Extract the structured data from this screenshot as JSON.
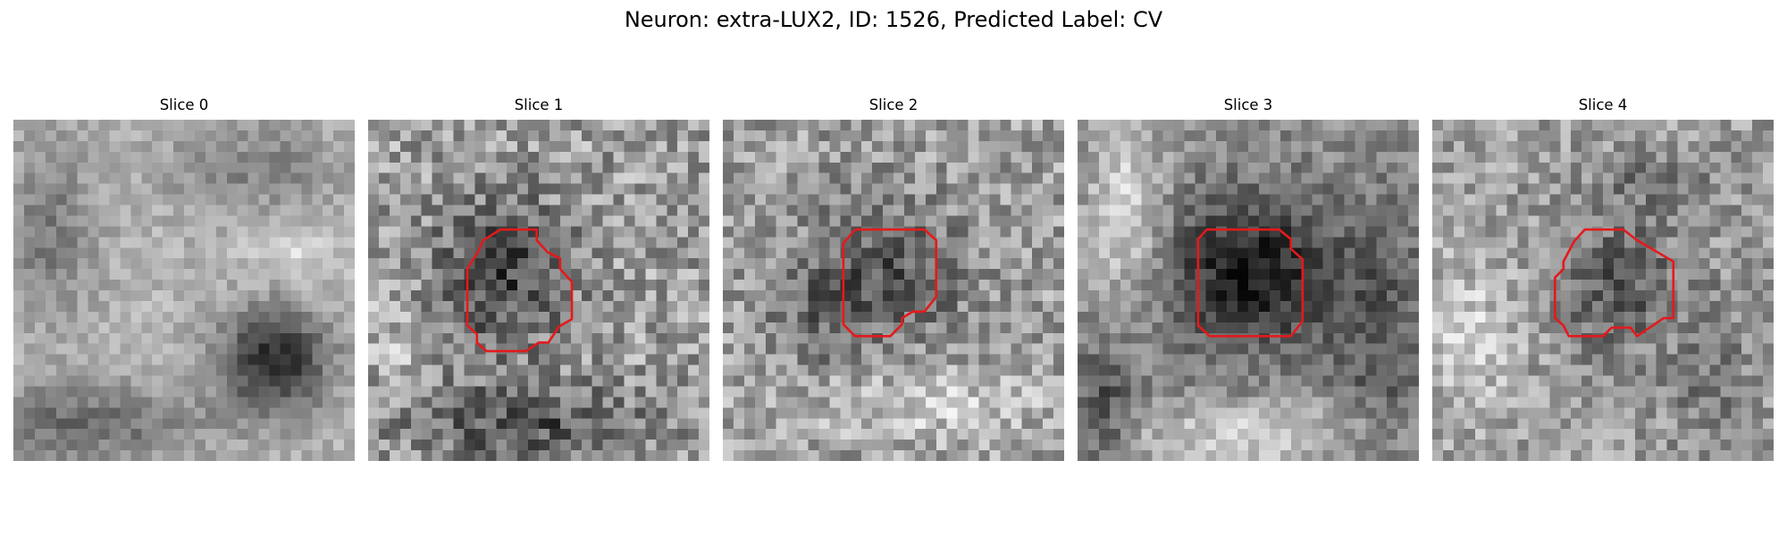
{
  "figure": {
    "title": "Neuron: extra-LUX2, ID: 1526, Predicted Label: CV"
  },
  "panels": [
    {
      "title": "Slice 0",
      "has_contour": false
    },
    {
      "title": "Slice 1",
      "has_contour": true
    },
    {
      "title": "Slice 2",
      "has_contour": true
    },
    {
      "title": "Slice 3",
      "has_contour": true
    },
    {
      "title": "Slice 4",
      "has_contour": true
    }
  ],
  "colors": {
    "contour": "#e31a1c",
    "colormap": "grayscale"
  }
}
